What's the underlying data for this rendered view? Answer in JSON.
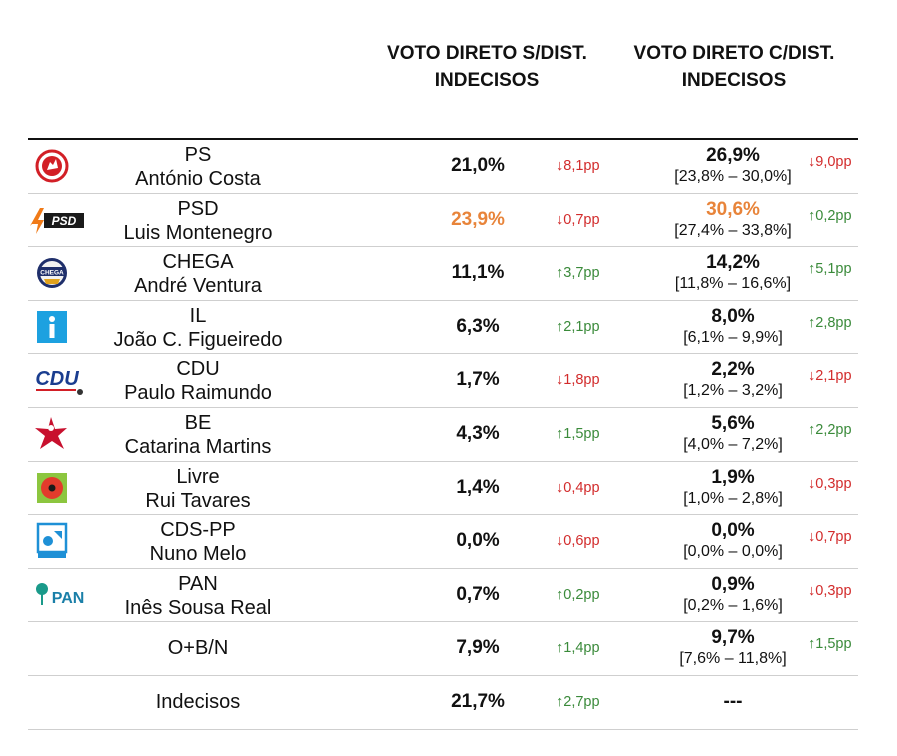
{
  "header": {
    "col1": [
      "VOTO DIRETO S/DIST.",
      "INDECISOS"
    ],
    "col2": [
      "VOTO DIRETO C/DIST.",
      "INDECISOS"
    ]
  },
  "colors": {
    "lead": "#e8843a",
    "up": "#3a8a3a",
    "down": "#d22b2b"
  },
  "chart_data": {
    "type": "table",
    "columns": [
      "VOTO DIRETO S/DIST. INDECISOS",
      "VOTO DIRETO C/DIST. INDECISOS"
    ],
    "rows": [
      {
        "logo": "ps-logo",
        "party": "PS",
        "leader": "António Costa",
        "v1": "21,0%",
        "d1": "↓8,1pp",
        "d1dir": "down",
        "v2": "26,9%",
        "ci": "[23,8% – 30,0%]",
        "d2": "↓9,0pp",
        "d2dir": "down",
        "lead": false
      },
      {
        "logo": "psd-logo",
        "party": "PSD",
        "leader": "Luis Montenegro",
        "v1": "23,9%",
        "d1": "↓0,7pp",
        "d1dir": "down",
        "v2": "30,6%",
        "ci": "[27,4% – 33,8%]",
        "d2": "↑0,2pp",
        "d2dir": "up",
        "lead": true
      },
      {
        "logo": "chega-logo",
        "party": "CHEGA",
        "leader": "André Ventura",
        "v1": "11,1%",
        "d1": "↑3,7pp",
        "d1dir": "up",
        "v2": "14,2%",
        "ci": "[11,8% – 16,6%]",
        "d2": "↑5,1pp",
        "d2dir": "up",
        "lead": false
      },
      {
        "logo": "il-logo",
        "party": "IL",
        "leader": "João C. Figueiredo",
        "v1": "6,3%",
        "d1": "↑2,1pp",
        "d1dir": "up",
        "v2": "8,0%",
        "ci": "[6,1% – 9,9%]",
        "d2": "↑2,8pp",
        "d2dir": "up",
        "lead": false
      },
      {
        "logo": "cdu-logo",
        "party": "CDU",
        "leader": "Paulo Raimundo",
        "v1": "1,7%",
        "d1": "↓1,8pp",
        "d1dir": "down",
        "v2": "2,2%",
        "ci": "[1,2% – 3,2%]",
        "d2": "↓2,1pp",
        "d2dir": "down",
        "lead": false
      },
      {
        "logo": "be-logo",
        "party": "BE",
        "leader": "Catarina Martins",
        "v1": "4,3%",
        "d1": "↑1,5pp",
        "d1dir": "up",
        "v2": "5,6%",
        "ci": "[4,0% – 7,2%]",
        "d2": "↑2,2pp",
        "d2dir": "up",
        "lead": false
      },
      {
        "logo": "livre-logo",
        "party": "Livre",
        "leader": "Rui Tavares",
        "v1": "1,4%",
        "d1": "↓0,4pp",
        "d1dir": "down",
        "v2": "1,9%",
        "ci": "[1,0% – 2,8%]",
        "d2": "↓0,3pp",
        "d2dir": "down",
        "lead": false
      },
      {
        "logo": "cds-logo",
        "party": "CDS-PP",
        "leader": "Nuno Melo",
        "v1": "0,0%",
        "d1": "↓0,6pp",
        "d1dir": "down",
        "v2": "0,0%",
        "ci": "[0,0% – 0,0%]",
        "d2": "↓0,7pp",
        "d2dir": "down",
        "lead": false
      },
      {
        "logo": "pan-logo",
        "party": "PAN",
        "leader": "Inês Sousa Real",
        "v1": "0,7%",
        "d1": "↑0,2pp",
        "d1dir": "up",
        "v2": "0,9%",
        "ci": "[0,2% – 1,6%]",
        "d2": "↓0,3pp",
        "d2dir": "down",
        "lead": false
      },
      {
        "logo": "",
        "party": "O+B/N",
        "leader": "",
        "v1": "7,9%",
        "d1": "↑1,4pp",
        "d1dir": "up",
        "v2": "9,7%",
        "ci": "[7,6% – 11,8%]",
        "d2": "↑1,5pp",
        "d2dir": "up",
        "lead": false
      },
      {
        "logo": "",
        "party": "Indecisos",
        "leader": "",
        "v1": "21,7%",
        "d1": "↑2,7pp",
        "d1dir": "up",
        "v2": "---",
        "ci": "",
        "d2": "",
        "d2dir": "",
        "lead": false
      }
    ]
  }
}
